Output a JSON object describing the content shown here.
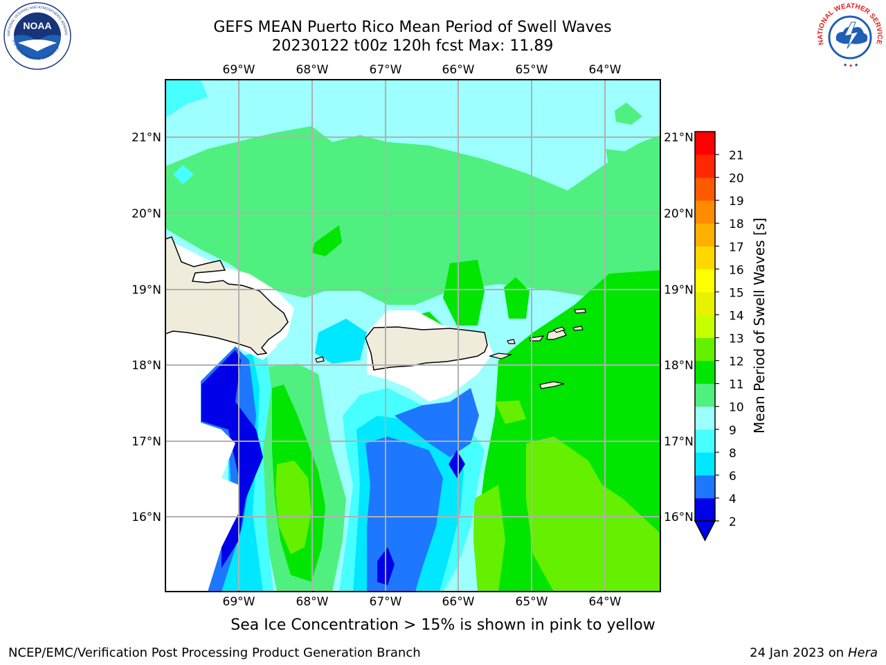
{
  "title": {
    "line1": "GEFS MEAN Puerto Rico Mean Period of Swell Waves",
    "line2": "20230122 t00z 120h fcst   Max: 11.89"
  },
  "map": {
    "lon_labels": [
      "69°W",
      "68°W",
      "67°W",
      "66°W",
      "65°W",
      "64°W"
    ],
    "lat_labels": [
      "21°N",
      "20°N",
      "19°N",
      "18°N",
      "17°N",
      "16°N"
    ],
    "land_color": "#efecdc",
    "islands": [
      "Hispaniola",
      "Puerto Rico",
      "Virgin Islands",
      "St. Croix"
    ]
  },
  "colorbar": {
    "label": "Mean Period of Swell Waves [s]",
    "ticks": [
      "2",
      "4",
      "6",
      "8",
      "9",
      "10",
      "11",
      "12",
      "13",
      "14",
      "15",
      "16",
      "17",
      "18",
      "19",
      "20",
      "21"
    ],
    "colors": [
      "#0000e8",
      "#1e78ff",
      "#00e8ff",
      "#48ffff",
      "#9effff",
      "#50f080",
      "#00e600",
      "#64f000",
      "#c8ff00",
      "#e6f200",
      "#ffff00",
      "#ffd800",
      "#ffb000",
      "#ff8c00",
      "#ff5a00",
      "#ff2800",
      "#ff0000"
    ],
    "extend_color": "#0000e8"
  },
  "note": "Sea Ice Concentration > 15% is shown in pink to yellow",
  "footer": {
    "left": "NCEP/EMC/Verification Post Processing Product Generation Branch",
    "right_prefix": "24 Jan 2023 on ",
    "right_host": "Hera"
  },
  "logos": {
    "noaa_text": "NOAA",
    "noaa_ring": "NATIONAL OCEANIC AND ATMOSPHERIC ADMINISTRATION",
    "noaa_ring_bottom": "U.S. DEPARTMENT OF COMMERCE",
    "nws_ring": "NATIONAL WEATHER SERVICE"
  }
}
